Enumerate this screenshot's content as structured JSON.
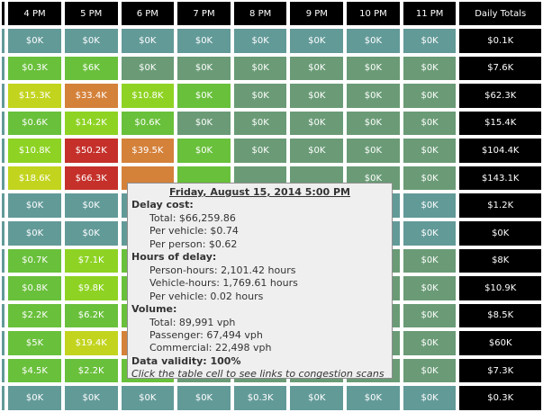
{
  "colors": {
    "header_bg": "#000000",
    "cell_text": "#ffffff",
    "total_bg": "#000000",
    "level_zero": "#629a98",
    "level_flat": "#6a9b76",
    "level_low": "#69c03b",
    "level_mid": "#8ed323",
    "level_yellow": "#c2d41e",
    "level_orange": "#d4813a",
    "level_red": "#c5302a",
    "tooltip_bg": "#efefef"
  },
  "headers": [
    "",
    "4 PM",
    "5 PM",
    "6 PM",
    "7 PM",
    "8 PM",
    "9 PM",
    "10 PM",
    "11 PM",
    "Daily Totals"
  ],
  "rows": [
    {
      "cells": [
        {
          "t": "$0K",
          "c": "level_zero"
        },
        {
          "t": "$0K",
          "c": "level_zero"
        },
        {
          "t": "$0K",
          "c": "level_zero"
        },
        {
          "t": "$0K",
          "c": "level_zero"
        },
        {
          "t": "$0K",
          "c": "level_zero"
        },
        {
          "t": "$0K",
          "c": "level_zero"
        },
        {
          "t": "$0K",
          "c": "level_zero"
        },
        {
          "t": "$0K",
          "c": "level_zero"
        },
        {
          "t": "$0.1K",
          "c": "total_bg"
        }
      ]
    },
    {
      "cells": [
        {
          "t": "$0.3K",
          "c": "level_low"
        },
        {
          "t": "$6K",
          "c": "level_low"
        },
        {
          "t": "$0K",
          "c": "level_flat"
        },
        {
          "t": "$0K",
          "c": "level_flat"
        },
        {
          "t": "$0K",
          "c": "level_flat"
        },
        {
          "t": "$0K",
          "c": "level_flat"
        },
        {
          "t": "$0K",
          "c": "level_flat"
        },
        {
          "t": "$0K",
          "c": "level_flat"
        },
        {
          "t": "$7.6K",
          "c": "total_bg"
        }
      ]
    },
    {
      "cells": [
        {
          "t": "$15.3K",
          "c": "level_yellow"
        },
        {
          "t": "$33.4K",
          "c": "level_orange"
        },
        {
          "t": "$10.8K",
          "c": "level_mid"
        },
        {
          "t": "$0K",
          "c": "level_low"
        },
        {
          "t": "$0K",
          "c": "level_flat"
        },
        {
          "t": "$0K",
          "c": "level_flat"
        },
        {
          "t": "$0K",
          "c": "level_flat"
        },
        {
          "t": "$0K",
          "c": "level_flat"
        },
        {
          "t": "$62.3K",
          "c": "total_bg"
        }
      ]
    },
    {
      "cells": [
        {
          "t": "$0.6K",
          "c": "level_low"
        },
        {
          "t": "$14.2K",
          "c": "level_mid"
        },
        {
          "t": "$0.6K",
          "c": "level_low"
        },
        {
          "t": "$0K",
          "c": "level_flat"
        },
        {
          "t": "$0K",
          "c": "level_flat"
        },
        {
          "t": "$0K",
          "c": "level_flat"
        },
        {
          "t": "$0K",
          "c": "level_flat"
        },
        {
          "t": "$0K",
          "c": "level_flat"
        },
        {
          "t": "$15.4K",
          "c": "total_bg"
        }
      ]
    },
    {
      "cells": [
        {
          "t": "$10.8K",
          "c": "level_mid"
        },
        {
          "t": "$50.2K",
          "c": "level_red"
        },
        {
          "t": "$39.5K",
          "c": "level_orange"
        },
        {
          "t": "$0K",
          "c": "level_low"
        },
        {
          "t": "$0K",
          "c": "level_flat"
        },
        {
          "t": "$0K",
          "c": "level_flat"
        },
        {
          "t": "$0K",
          "c": "level_flat"
        },
        {
          "t": "$0K",
          "c": "level_flat"
        },
        {
          "t": "$104.4K",
          "c": "total_bg"
        }
      ]
    },
    {
      "cells": [
        {
          "t": "$18.6K",
          "c": "level_yellow"
        },
        {
          "t": "$66.3K",
          "c": "level_red"
        },
        {
          "t": "",
          "c": "level_orange"
        },
        {
          "t": "",
          "c": "level_low"
        },
        {
          "t": "",
          "c": "level_flat"
        },
        {
          "t": "",
          "c": "level_flat"
        },
        {
          "t": "$0K",
          "c": "level_flat"
        },
        {
          "t": "$0K",
          "c": "level_flat"
        },
        {
          "t": "$143.1K",
          "c": "total_bg"
        }
      ]
    },
    {
      "cells": [
        {
          "t": "$0K",
          "c": "level_zero"
        },
        {
          "t": "$0K",
          "c": "level_zero"
        },
        {
          "t": "",
          "c": "level_zero"
        },
        {
          "t": "",
          "c": "level_zero"
        },
        {
          "t": "",
          "c": "level_zero"
        },
        {
          "t": "",
          "c": "level_zero"
        },
        {
          "t": "$0K",
          "c": "level_zero"
        },
        {
          "t": "$0K",
          "c": "level_zero"
        },
        {
          "t": "$1.2K",
          "c": "total_bg"
        }
      ]
    },
    {
      "cells": [
        {
          "t": "$0K",
          "c": "level_zero"
        },
        {
          "t": "$0K",
          "c": "level_zero"
        },
        {
          "t": "",
          "c": "level_zero"
        },
        {
          "t": "",
          "c": "level_zero"
        },
        {
          "t": "",
          "c": "level_zero"
        },
        {
          "t": "",
          "c": "level_zero"
        },
        {
          "t": "$0K",
          "c": "level_zero"
        },
        {
          "t": "$0K",
          "c": "level_zero"
        },
        {
          "t": "$0K",
          "c": "total_bg"
        }
      ]
    },
    {
      "cells": [
        {
          "t": "$0.7K",
          "c": "level_low"
        },
        {
          "t": "$7.1K",
          "c": "level_mid"
        },
        {
          "t": "",
          "c": "level_low"
        },
        {
          "t": "",
          "c": "level_flat"
        },
        {
          "t": "",
          "c": "level_flat"
        },
        {
          "t": "",
          "c": "level_flat"
        },
        {
          "t": "$0K",
          "c": "level_flat"
        },
        {
          "t": "$0K",
          "c": "level_flat"
        },
        {
          "t": "$8K",
          "c": "total_bg"
        }
      ]
    },
    {
      "cells": [
        {
          "t": "$0.8K",
          "c": "level_low"
        },
        {
          "t": "$9.8K",
          "c": "level_mid"
        },
        {
          "t": "",
          "c": "level_low"
        },
        {
          "t": "",
          "c": "level_flat"
        },
        {
          "t": "",
          "c": "level_flat"
        },
        {
          "t": "",
          "c": "level_flat"
        },
        {
          "t": "$0K",
          "c": "level_flat"
        },
        {
          "t": "$0K",
          "c": "level_flat"
        },
        {
          "t": "$10.9K",
          "c": "total_bg"
        }
      ]
    },
    {
      "cells": [
        {
          "t": "$2.2K",
          "c": "level_low"
        },
        {
          "t": "$6.2K",
          "c": "level_low"
        },
        {
          "t": "",
          "c": "level_low"
        },
        {
          "t": "",
          "c": "level_flat"
        },
        {
          "t": "",
          "c": "level_flat"
        },
        {
          "t": "",
          "c": "level_flat"
        },
        {
          "t": "$0K",
          "c": "level_flat"
        },
        {
          "t": "$0K",
          "c": "level_flat"
        },
        {
          "t": "$8.5K",
          "c": "total_bg"
        }
      ]
    },
    {
      "cells": [
        {
          "t": "$5K",
          "c": "level_low"
        },
        {
          "t": "$19.4K",
          "c": "level_yellow"
        },
        {
          "t": "",
          "c": "level_orange"
        },
        {
          "t": "",
          "c": "level_low"
        },
        {
          "t": "",
          "c": "level_flat"
        },
        {
          "t": "",
          "c": "level_flat"
        },
        {
          "t": "$0K",
          "c": "level_flat"
        },
        {
          "t": "$0K",
          "c": "level_flat"
        },
        {
          "t": "$60K",
          "c": "total_bg"
        }
      ]
    },
    {
      "cells": [
        {
          "t": "$4.5K",
          "c": "level_low"
        },
        {
          "t": "$2.2K",
          "c": "level_low"
        },
        {
          "t": "",
          "c": "level_low"
        },
        {
          "t": "",
          "c": "level_flat"
        },
        {
          "t": "",
          "c": "level_flat"
        },
        {
          "t": "",
          "c": "level_flat"
        },
        {
          "t": "$0K",
          "c": "level_flat"
        },
        {
          "t": "$0K",
          "c": "level_flat"
        },
        {
          "t": "$7.3K",
          "c": "total_bg"
        }
      ]
    },
    {
      "cells": [
        {
          "t": "$0K",
          "c": "level_zero"
        },
        {
          "t": "$0K",
          "c": "level_zero"
        },
        {
          "t": "$0K",
          "c": "level_zero"
        },
        {
          "t": "$0K",
          "c": "level_zero"
        },
        {
          "t": "$0.3K",
          "c": "level_zero"
        },
        {
          "t": "$0K",
          "c": "level_zero"
        },
        {
          "t": "$0K",
          "c": "level_zero"
        },
        {
          "t": "$0K",
          "c": "level_zero"
        },
        {
          "t": "$0.3K",
          "c": "total_bg"
        }
      ]
    }
  ],
  "tooltip": {
    "title": "Friday, August 15, 2014 5:00 PM",
    "delay_cost_heading": "Delay cost:",
    "total": "Total: $66,259.86",
    "per_vehicle": "Per vehicle: $0.74",
    "per_person": "Per person: $0.62",
    "hours_heading": "Hours of delay:",
    "person_hours": "Person-hours: 2,101.42 hours",
    "vehicle_hours": "Vehicle-hours: 1,769.61 hours",
    "per_vehicle_hours": "Per vehicle: 0.02 hours",
    "volume_heading": "Volume:",
    "volume_total": "Total: 89,991 vph",
    "passenger": "Passenger: 67,494 vph",
    "commercial": "Commercial: 22,498 vph",
    "validity": "Data validity: 100%",
    "note": "Click the table cell to see links to congestion scans"
  }
}
